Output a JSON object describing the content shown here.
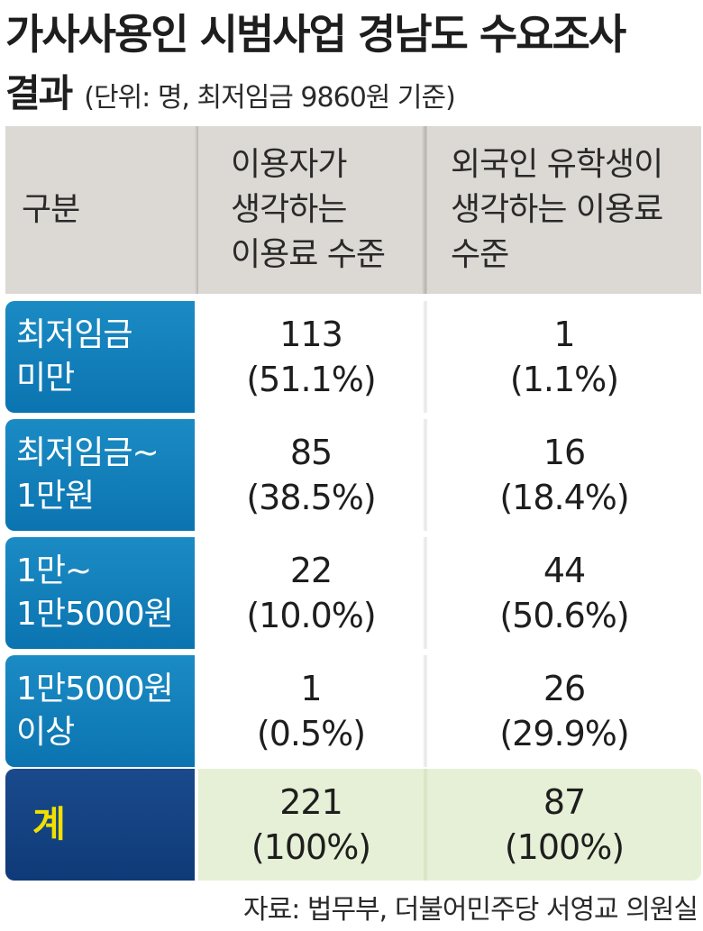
{
  "title": {
    "line1": "가사사용인 시범사업 경남도 수요조사",
    "line2": "결과",
    "subtitle": "(단위: 명, 최저임금 9860원 기준)"
  },
  "header": {
    "col0": "구분",
    "col1": "이용자가\n생각하는\n이용료 수준",
    "col2": "외국인 유학생이\n생각하는 이용료\n수준"
  },
  "rows": [
    {
      "label": "최저임금\n미만",
      "c1_count": "113",
      "c1_pct": "(51.1%)",
      "c2_count": "1",
      "c2_pct": "(1.1%)"
    },
    {
      "label": "최저임금~\n1만원",
      "c1_count": "85",
      "c1_pct": "(38.5%)",
      "c2_count": "16",
      "c2_pct": "(18.4%)"
    },
    {
      "label": "1만~\n1만5000원",
      "c1_count": "22",
      "c1_pct": "(10.0%)",
      "c2_count": "44",
      "c2_pct": "(50.6%)"
    },
    {
      "label": "1만5000원\n이상",
      "c1_count": "1",
      "c1_pct": "(0.5%)",
      "c2_count": "26",
      "c2_pct": "(29.9%)"
    }
  ],
  "total": {
    "label": "계",
    "c1_count": "221",
    "c1_pct": "(100%)",
    "c2_count": "87",
    "c2_pct": "(100%)"
  },
  "source": "자료: 법무부, 더불어민주당 서영교 의원실",
  "colors": {
    "label_blue": "#0b74b0",
    "total_navy": "#1a4a8c",
    "total_label": "#f0e000",
    "total_bg": "#e6f0d6",
    "header_bg": "#dcd8d4"
  },
  "chart_data": {
    "type": "table",
    "title": "가사사용인 시범사업 경남도 수요조사 결과",
    "subtitle": "(단위: 명, 최저임금 9860원 기준)",
    "columns": [
      "구분",
      "이용자가 생각하는 이용료 수준",
      "외국인 유학생이 생각하는 이용료 수준"
    ],
    "categories": [
      "최저임금 미만",
      "최저임금~1만원",
      "1만~1만5000원",
      "1만5000원 이상",
      "계"
    ],
    "series": [
      {
        "name": "이용자가 생각하는 이용료 수준",
        "values": [
          113,
          85,
          22,
          1,
          221
        ],
        "percent": [
          51.1,
          38.5,
          10.0,
          0.5,
          100
        ]
      },
      {
        "name": "외국인 유학생이 생각하는 이용료 수준",
        "values": [
          1,
          16,
          44,
          26,
          87
        ],
        "percent": [
          1.1,
          18.4,
          50.6,
          29.9,
          100
        ]
      }
    ]
  }
}
